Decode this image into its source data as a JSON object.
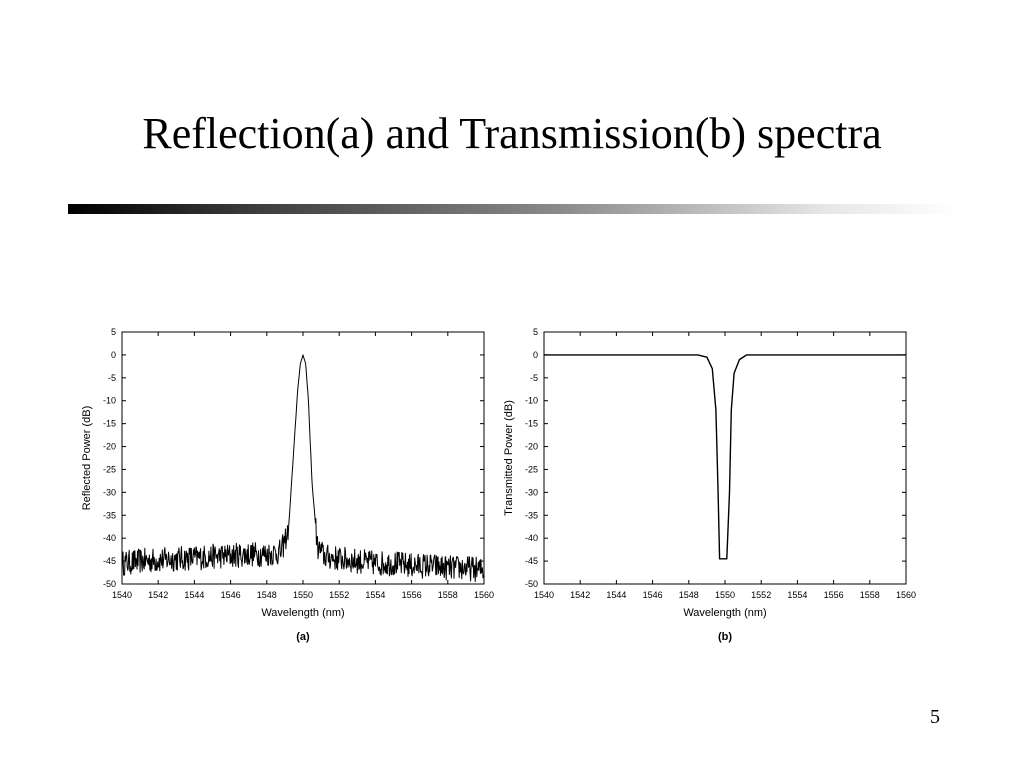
{
  "slide": {
    "title": "Reflection(a) and Transmission(b) spectra",
    "page_number": "5"
  },
  "chart_data": [
    {
      "type": "line",
      "panel_label": "(a)",
      "xlabel": "Wavelength (nm)",
      "ylabel": "Reflected Power (dB)",
      "xlim": [
        1540,
        1560
      ],
      "ylim": [
        -50,
        5
      ],
      "xticks": [
        1540,
        1542,
        1544,
        1546,
        1548,
        1550,
        1552,
        1554,
        1556,
        1558,
        1560
      ],
      "yticks": [
        5,
        0,
        -5,
        -10,
        -15,
        -20,
        -25,
        -30,
        -35,
        -40,
        -45,
        -50
      ],
      "grid": false,
      "series": [
        {
          "x": [
            1540,
            1541,
            1542,
            1543,
            1544,
            1545,
            1546,
            1547,
            1548,
            1548.8,
            1549.2,
            1549.5,
            1549.7,
            1549.85,
            1550.0,
            1550.15,
            1550.3,
            1550.5,
            1550.8,
            1551.2,
            1552,
            1553,
            1554,
            1555,
            1556,
            1557,
            1558,
            1559,
            1560
          ],
          "y": [
            -45.5,
            -45,
            -44.8,
            -44.5,
            -44.3,
            -44,
            -43.8,
            -43.5,
            -43.5,
            -43,
            -38,
            -20,
            -8,
            -2,
            0,
            -2,
            -10,
            -28,
            -42,
            -44,
            -44.5,
            -45,
            -45.5,
            -45.5,
            -46,
            -46,
            -46.5,
            -46.5,
            -47
          ]
        }
      ]
    },
    {
      "type": "line",
      "panel_label": "(b)",
      "xlabel": "Wavelength (nm)",
      "ylabel": "Transmitted Power (dB)",
      "xlim": [
        1540,
        1560
      ],
      "ylim": [
        -50,
        5
      ],
      "xticks": [
        1540,
        1542,
        1544,
        1546,
        1548,
        1550,
        1552,
        1554,
        1556,
        1558,
        1560
      ],
      "yticks": [
        5,
        0,
        -5,
        -10,
        -15,
        -20,
        -25,
        -30,
        -35,
        -40,
        -45,
        -50
      ],
      "grid": false,
      "series": [
        {
          "x": [
            1540,
            1545,
            1548.5,
            1549.0,
            1549.3,
            1549.5,
            1549.62,
            1549.7,
            1550.1,
            1550.25,
            1550.35,
            1550.5,
            1550.8,
            1551.2,
            1555,
            1560
          ],
          "y": [
            0,
            0,
            0,
            -0.5,
            -3,
            -12,
            -30,
            -44.5,
            -44.5,
            -30,
            -12,
            -4,
            -1,
            0,
            0,
            0
          ]
        }
      ]
    }
  ]
}
